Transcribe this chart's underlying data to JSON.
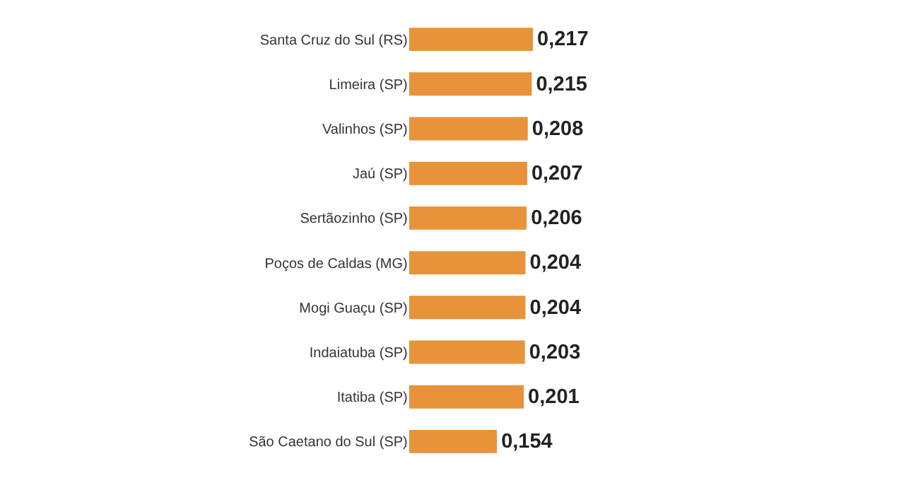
{
  "chart_data": {
    "type": "bar",
    "orientation": "horizontal",
    "categories": [
      "Santa Cruz do Sul (RS)",
      "Limeira (SP)",
      "Valinhos (SP)",
      "Jaú (SP)",
      "Sertãozinho (SP)",
      "Poços de Caldas (MG)",
      "Mogi Guaçu (SP)",
      "Indaiatuba (SP)",
      "Itatiba (SP)",
      "São Caetano do Sul (SP)"
    ],
    "values": [
      0.217,
      0.215,
      0.208,
      0.207,
      0.206,
      0.204,
      0.204,
      0.203,
      0.201,
      0.154
    ],
    "value_labels": [
      "0,217",
      "0,215",
      "0,208",
      "0,207",
      "0,206",
      "0,204",
      "0,204",
      "0,203",
      "0,201",
      "0,154"
    ],
    "color": "#e8923a",
    "tick_labels": "y"
  }
}
